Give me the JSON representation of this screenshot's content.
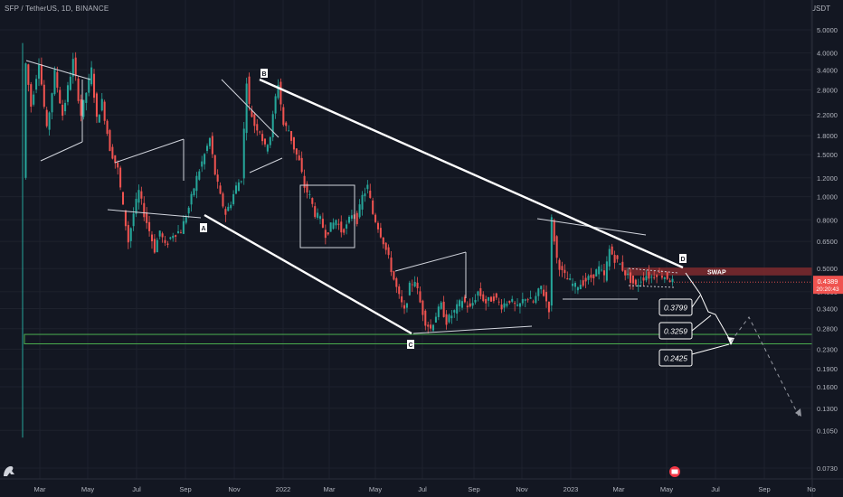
{
  "header": {
    "symbol": "SFP / TetherUS, 1D, BINANCE",
    "currency": "USDT"
  },
  "colors": {
    "background": "#131722",
    "grid": "#1e222d",
    "up": "#26a69a",
    "down": "#ef5350",
    "pattern": "#d1d4dc",
    "support": "#4caf50",
    "swap": "#7f2a2e"
  },
  "chart_data": {
    "type": "candlestick",
    "title": "",
    "y_scale": "log",
    "ylim": [
      0.07,
      5.6
    ],
    "xlabels": [
      "Mar",
      "May",
      "Jul",
      "Sep",
      "Nov",
      "2022",
      "Mar",
      "May",
      "Jul",
      "Sep",
      "Nov",
      "2023",
      "Mar",
      "May",
      "Jul",
      "Sep",
      "No"
    ],
    "yticks": [
      "5.0000",
      "4.0000",
      "3.4000",
      "2.8000",
      "2.2000",
      "1.8000",
      "1.5000",
      "1.2000",
      "1.0000",
      "0.8000",
      "0.6500",
      "0.5000",
      "0.4000",
      "0.3400",
      "0.2800",
      "0.2300",
      "0.1900",
      "0.1600",
      "0.1300",
      "0.1050",
      "0.0730"
    ],
    "ytick_values": [
      5.0,
      4.0,
      3.4,
      2.8,
      2.2,
      1.8,
      1.5,
      1.2,
      1.0,
      0.8,
      0.65,
      0.5,
      0.4,
      0.34,
      0.28,
      0.23,
      0.19,
      0.16,
      0.13,
      0.105,
      0.073
    ],
    "price_path": [
      [
        0,
        1.2
      ],
      [
        1,
        3.6
      ],
      [
        3,
        2.4
      ],
      [
        6,
        3.7
      ],
      [
        9,
        1.9
      ],
      [
        12,
        3.3
      ],
      [
        15,
        2.2
      ],
      [
        19,
        3.7
      ],
      [
        22,
        2.2
      ],
      [
        26,
        3.4
      ],
      [
        28,
        2.1
      ],
      [
        30,
        2.5
      ],
      [
        33,
        1.6
      ],
      [
        36,
        1.3
      ],
      [
        38,
        0.9
      ],
      [
        40,
        0.65
      ],
      [
        42,
        0.85
      ],
      [
        44,
        1.05
      ],
      [
        46,
        0.85
      ],
      [
        48,
        0.72
      ],
      [
        50,
        0.6
      ],
      [
        52,
        0.72
      ],
      [
        54,
        0.62
      ],
      [
        57,
        0.7
      ],
      [
        60,
        0.72
      ],
      [
        63,
        0.9
      ],
      [
        66,
        1.2
      ],
      [
        69,
        1.5
      ],
      [
        71,
        1.75
      ],
      [
        73,
        1.25
      ],
      [
        75,
        1.0
      ],
      [
        77,
        0.85
      ],
      [
        79,
        0.95
      ],
      [
        81,
        1.1
      ],
      [
        83,
        1.2
      ],
      [
        84,
        1.9
      ],
      [
        85,
        3.1
      ],
      [
        86,
        2.4
      ],
      [
        88,
        2.0
      ],
      [
        90,
        1.9
      ],
      [
        92,
        1.6
      ],
      [
        94,
        1.8
      ],
      [
        96,
        2.6
      ],
      [
        97,
        3.0
      ],
      [
        99,
        2.0
      ],
      [
        101,
        1.9
      ],
      [
        103,
        1.6
      ],
      [
        105,
        1.4
      ],
      [
        107,
        1.1
      ],
      [
        109,
        1.0
      ],
      [
        111,
        0.85
      ],
      [
        113,
        0.8
      ],
      [
        115,
        0.7
      ],
      [
        117,
        0.75
      ],
      [
        119,
        0.8
      ],
      [
        121,
        0.72
      ],
      [
        123,
        0.75
      ],
      [
        125,
        0.85
      ],
      [
        127,
        0.8
      ],
      [
        129,
        1.0
      ],
      [
        131,
        1.1
      ],
      [
        133,
        0.85
      ],
      [
        135,
        0.75
      ],
      [
        137,
        0.65
      ],
      [
        139,
        0.55
      ],
      [
        141,
        0.45
      ],
      [
        143,
        0.38
      ],
      [
        145,
        0.33
      ],
      [
        147,
        0.42
      ],
      [
        149,
        0.45
      ],
      [
        151,
        0.36
      ],
      [
        153,
        0.3
      ],
      [
        155,
        0.28
      ],
      [
        157,
        0.32
      ],
      [
        159,
        0.35
      ],
      [
        161,
        0.3
      ],
      [
        164,
        0.33
      ],
      [
        167,
        0.37
      ],
      [
        170,
        0.34
      ],
      [
        173,
        0.4
      ],
      [
        176,
        0.36
      ],
      [
        179,
        0.38
      ],
      [
        182,
        0.35
      ],
      [
        185,
        0.37
      ],
      [
        188,
        0.34
      ],
      [
        191,
        0.38
      ],
      [
        194,
        0.36
      ],
      [
        197,
        0.42
      ],
      [
        200,
        0.34
      ],
      [
        201,
        0.8
      ],
      [
        203,
        0.55
      ],
      [
        205,
        0.48
      ],
      [
        207,
        0.45
      ],
      [
        210,
        0.42
      ],
      [
        213,
        0.44
      ],
      [
        216,
        0.46
      ],
      [
        219,
        0.5
      ],
      [
        221,
        0.46
      ],
      [
        223,
        0.6
      ],
      [
        225,
        0.55
      ],
      [
        227,
        0.52
      ],
      [
        229,
        0.48
      ],
      [
        231,
        0.45
      ],
      [
        233,
        0.42
      ],
      [
        235,
        0.45
      ],
      [
        237,
        0.47
      ],
      [
        239,
        0.46
      ],
      [
        241,
        0.48
      ],
      [
        243,
        0.47
      ],
      [
        245,
        0.46
      ],
      [
        247,
        0.44
      ]
    ],
    "pattern_labels": [
      "A",
      "B",
      "C",
      "D"
    ],
    "zone_label": "SWAP",
    "current_price": "0.4389",
    "countdown": "20:20:43",
    "targets": [
      "0.3799",
      "0.3259",
      "0.2425"
    ]
  }
}
